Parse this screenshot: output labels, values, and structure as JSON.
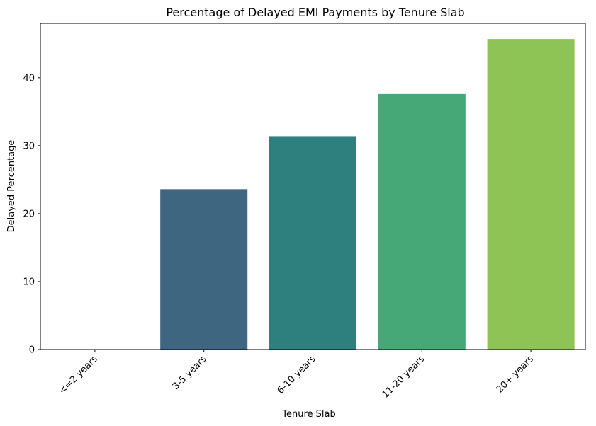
{
  "chart_data": {
    "type": "bar",
    "title": "Percentage of Delayed EMI Payments by Tenure Slab",
    "xlabel": "Tenure Slab",
    "ylabel": "Delayed Percentage",
    "categories": [
      "<=2 years",
      "3-5 years",
      "6-10 years",
      "11-20 years",
      "20+ years"
    ],
    "values": [
      0,
      23.6,
      31.4,
      37.6,
      45.7
    ],
    "colors": [
      "#440154",
      "#3e6681",
      "#2e807f",
      "#47a877",
      "#8ec456"
    ],
    "ylim": [
      0,
      48
    ],
    "yticks": [
      0,
      10,
      20,
      30,
      40
    ],
    "grid": false,
    "legend": "none"
  }
}
